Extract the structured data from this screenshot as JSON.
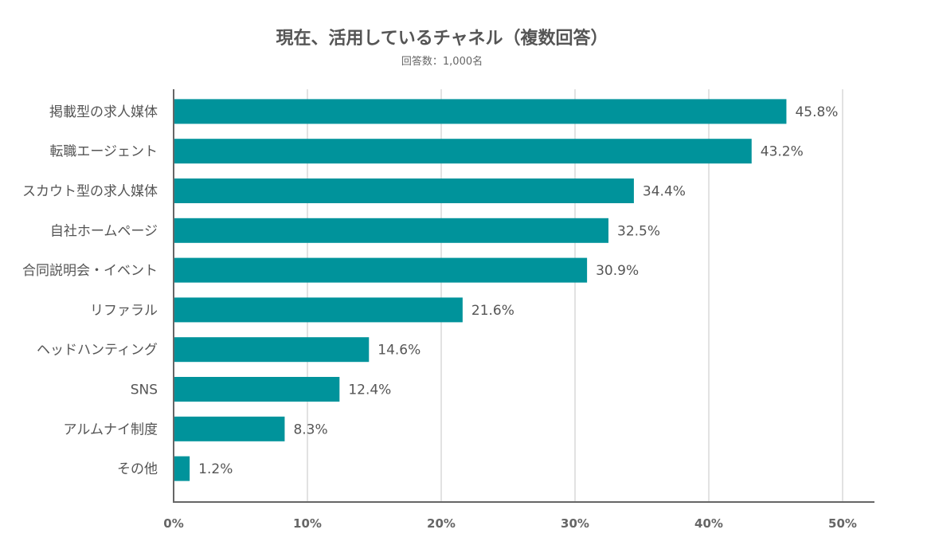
{
  "chart_data": {
    "type": "bar",
    "orientation": "horizontal",
    "title": "現在、活用しているチャネル（複数回答）",
    "subtitle": "回答数：1,000名",
    "categories": [
      "掲載型の求人媒体",
      "転職エージェント",
      "スカウト型の求人媒体",
      "自社ホームページ",
      "合同説明会・イベント",
      "リファラル",
      "ヘッドハンティング",
      "SNS",
      "アルムナイ制度",
      "その他"
    ],
    "values": [
      45.8,
      43.2,
      34.4,
      32.5,
      30.9,
      21.6,
      14.6,
      12.4,
      8.3,
      1.2
    ],
    "value_labels": [
      "45.8%",
      "43.2%",
      "34.4%",
      "32.5%",
      "30.9%",
      "21.6%",
      "14.6%",
      "12.4%",
      "8.3%",
      "1.2%"
    ],
    "xlim": [
      0,
      50
    ],
    "ticks": [
      0,
      10,
      20,
      30,
      40,
      50
    ],
    "tick_labels": [
      "0%",
      "10%",
      "20%",
      "30%",
      "40%",
      "50%"
    ],
    "grid": true,
    "bar_color": "#00939b",
    "grid_color": "#e2e2e2",
    "axis_color": "#666666"
  }
}
